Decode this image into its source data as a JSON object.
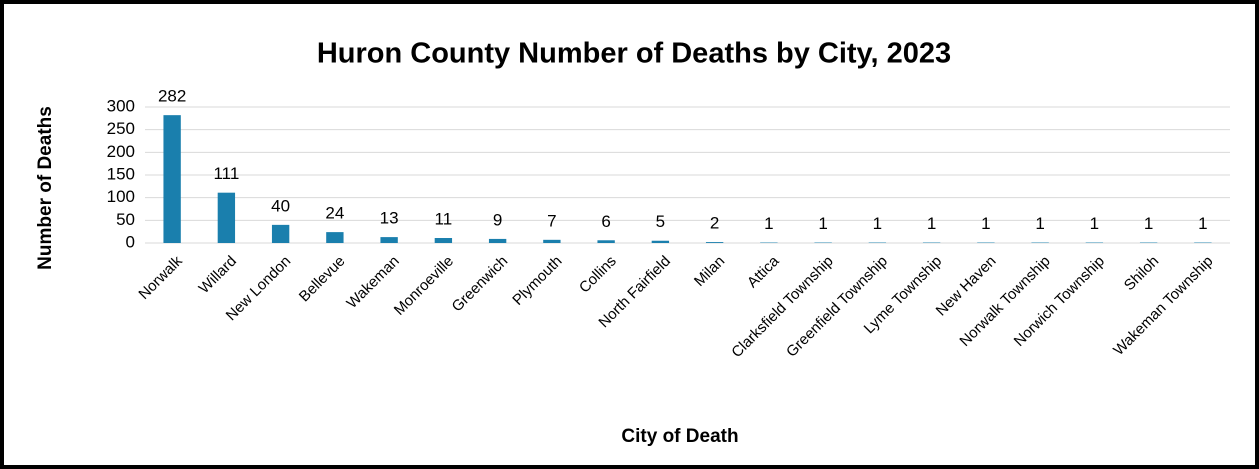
{
  "chart_data": {
    "type": "bar",
    "title": "Huron County Number of Deaths by City, 2023",
    "x_label": "City of Death",
    "y_label": "Number of Deaths",
    "categories": [
      "Norwalk",
      "Willard",
      "New London",
      "Bellevue",
      "Wakeman",
      "Monroeville",
      "Greenwich",
      "Plymouth",
      "Collins",
      "North Fairfield",
      "Milan",
      "Attica",
      "Clarksfield Township",
      "Greenfield Township",
      "Lyme Township",
      "New Haven",
      "Norwalk Township",
      "Norwich Township",
      "Shiloh",
      "Wakeman Township"
    ],
    "values": [
      282,
      111,
      40,
      24,
      13,
      11,
      9,
      7,
      6,
      5,
      2,
      1,
      1,
      1,
      1,
      1,
      1,
      1,
      1,
      1
    ],
    "color": "#1a7fad",
    "ylim": [
      0,
      300
    ],
    "yticks": [
      0,
      50,
      100,
      150,
      200,
      250,
      300
    ],
    "grid": true
  }
}
